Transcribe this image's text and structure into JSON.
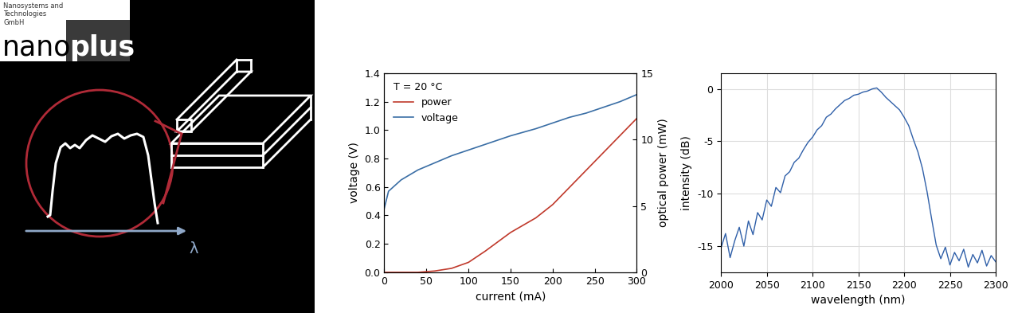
{
  "logo": {
    "company_lines": [
      "Nanosystems and",
      "Technologies",
      "GmbH"
    ],
    "name_left": "nano",
    "name_right": "plus"
  },
  "diagram": {
    "axis_symbol": "λ"
  },
  "chart_data": [
    {
      "type": "line",
      "annotation": "T = 20 °C",
      "x_label": "current (mA)",
      "y_label": "voltage (V)",
      "y2_label": "optical power (mW)",
      "x": [
        0,
        5,
        20,
        40,
        60,
        80,
        100,
        120,
        150,
        180,
        200,
        220,
        240,
        260,
        280,
        300
      ],
      "xlim": [
        0,
        300
      ],
      "xticks": [
        0,
        50,
        100,
        150,
        200,
        250,
        300
      ],
      "ylim": [
        0,
        1.4
      ],
      "yticks": [
        {
          "value": 0,
          "label": "0.0"
        },
        0.2,
        0.4,
        0.6,
        0.8,
        {
          "value": 1,
          "label": "1.0"
        },
        1.2,
        1.4
      ],
      "y2lim": [
        0,
        15
      ],
      "y2ticks": [
        0,
        5,
        10,
        15
      ],
      "grid": false,
      "legend": "upper left",
      "series": [
        {
          "name": "power",
          "color": "#c0392b",
          "axis": "y2",
          "values": [
            0,
            0,
            0,
            0,
            0.1,
            0.3,
            0.75,
            1.6,
            3.0,
            4.1,
            5.1,
            6.4,
            7.7,
            9.0,
            10.3,
            11.6
          ]
        },
        {
          "name": "voltage",
          "color": "#3a6ea5",
          "axis": "y",
          "values": [
            0.45,
            0.57,
            0.65,
            0.72,
            0.77,
            0.82,
            0.86,
            0.9,
            0.96,
            1.01,
            1.05,
            1.09,
            1.12,
            1.16,
            1.2,
            1.25
          ]
        }
      ]
    },
    {
      "type": "line",
      "x_label": "wavelength (nm)",
      "y_label": "intensity (dB)",
      "x": [
        2000,
        2005,
        2010,
        2015,
        2020,
        2025,
        2030,
        2035,
        2040,
        2045,
        2050,
        2055,
        2060,
        2065,
        2070,
        2075,
        2080,
        2085,
        2090,
        2095,
        2100,
        2105,
        2110,
        2115,
        2120,
        2125,
        2130,
        2135,
        2140,
        2145,
        2150,
        2155,
        2160,
        2165,
        2170,
        2175,
        2180,
        2185,
        2190,
        2195,
        2200,
        2205,
        2210,
        2215,
        2220,
        2225,
        2230,
        2235,
        2240,
        2245,
        2250,
        2255,
        2260,
        2265,
        2270,
        2275,
        2280,
        2285,
        2290,
        2295,
        2300
      ],
      "values": [
        -15.2,
        -13.8,
        -16.1,
        -14.5,
        -13.2,
        -15.0,
        -12.6,
        -13.9,
        -11.8,
        -12.5,
        -10.6,
        -11.2,
        -9.4,
        -9.9,
        -8.3,
        -7.9,
        -7.0,
        -6.6,
        -5.8,
        -5.1,
        -4.6,
        -3.9,
        -3.5,
        -2.7,
        -2.4,
        -1.9,
        -1.5,
        -1.1,
        -0.9,
        -0.6,
        -0.5,
        -0.3,
        -0.2,
        0.0,
        0.1,
        -0.3,
        -0.8,
        -1.2,
        -1.6,
        -2.0,
        -2.7,
        -3.5,
        -4.8,
        -6.0,
        -7.6,
        -9.8,
        -12.4,
        -14.9,
        -16.2,
        -15.1,
        -16.8,
        -15.6,
        -16.4,
        -15.3,
        -17.0,
        -15.8,
        -16.6,
        -15.4,
        -16.9,
        -15.9,
        -16.5
      ],
      "color": "#2f5fa8",
      "xlim": [
        2000,
        2300
      ],
      "xticks": [
        2000,
        2050,
        2100,
        2150,
        2200,
        2250,
        2300
      ],
      "ylim": [
        -17.5,
        1.5
      ],
      "yticks": [
        -15,
        -10,
        -5,
        0
      ],
      "grid": true
    }
  ]
}
